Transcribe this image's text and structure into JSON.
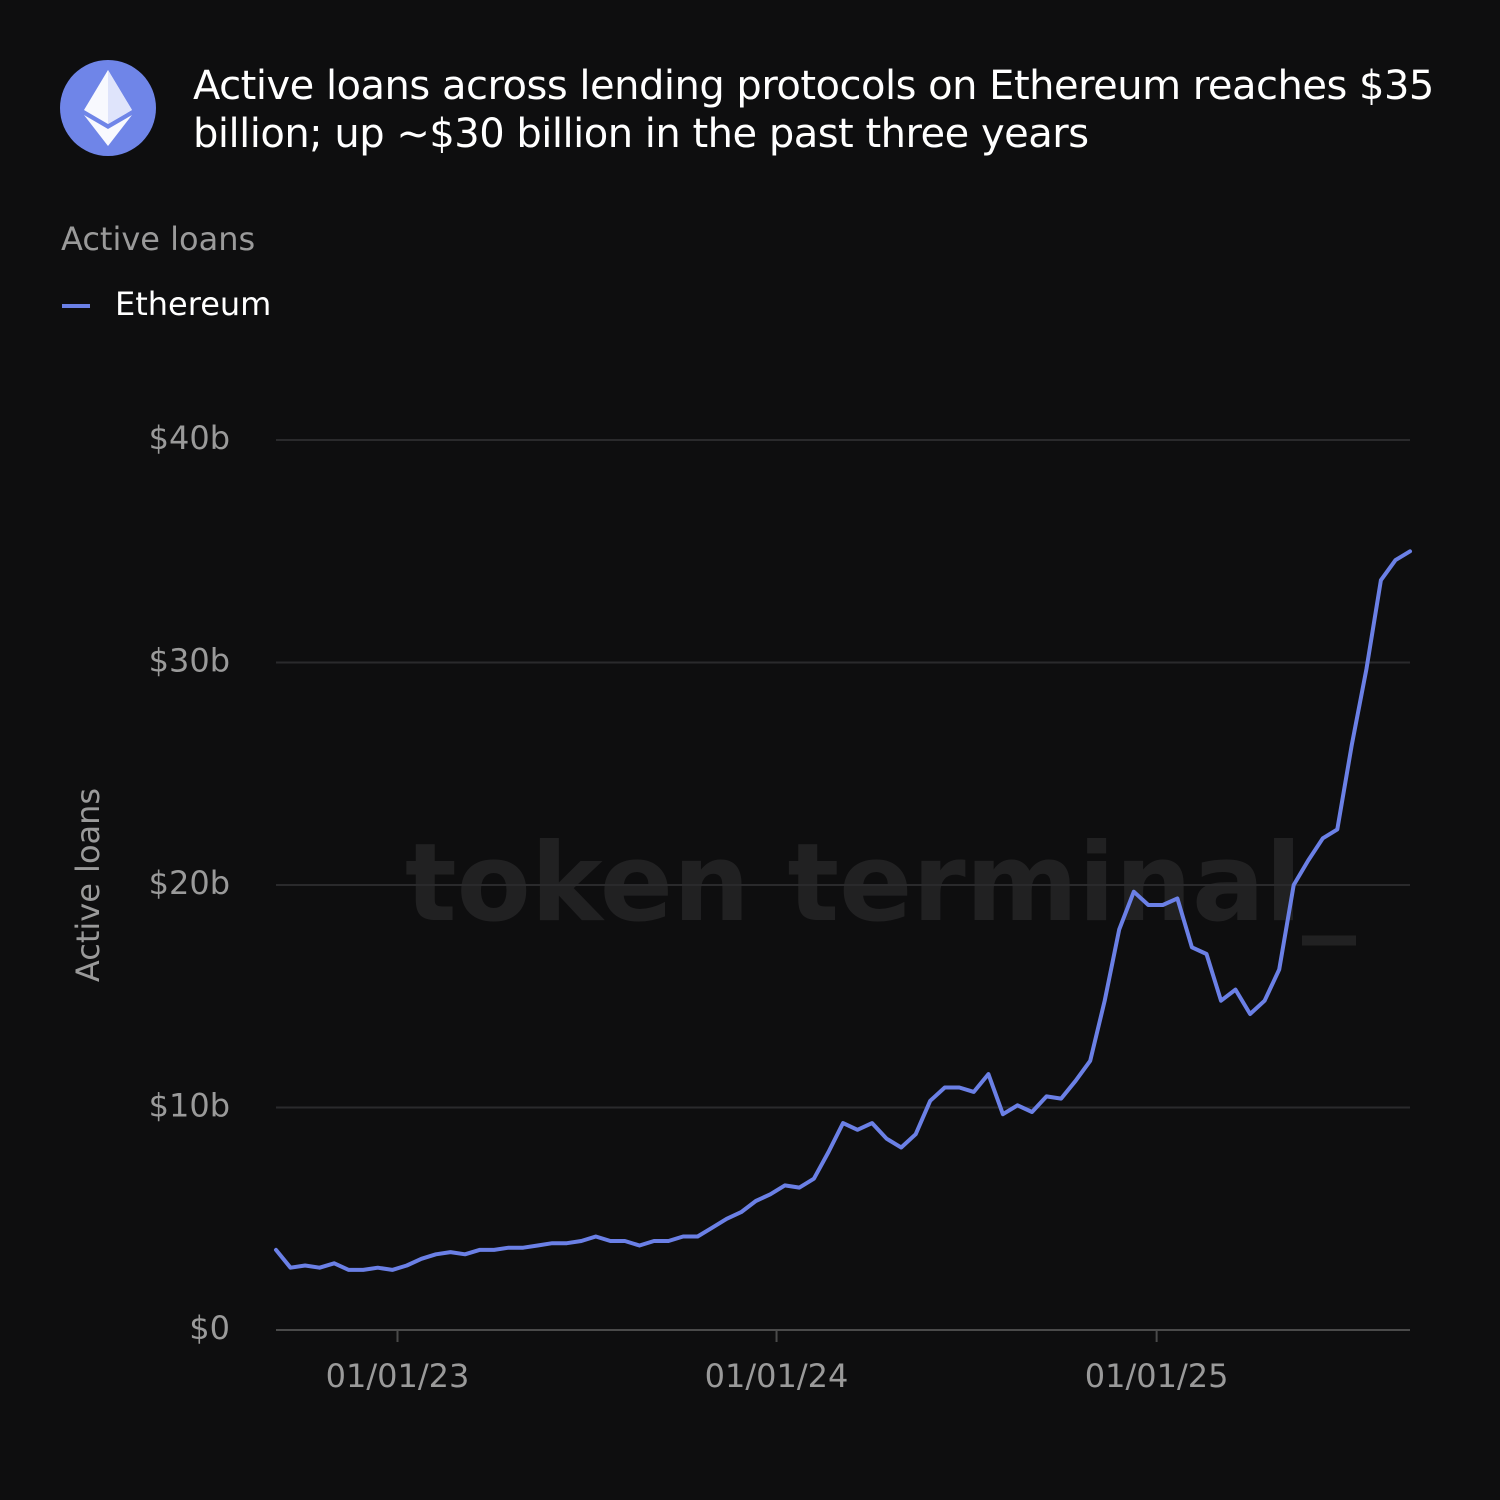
{
  "chart_data": {
    "type": "line",
    "title": "Active loans across lending protocols on Ethereum reaches $35 billion; up ~$30 billion in the past three years",
    "subtitle": "Active loans",
    "y_label": "Active loans",
    "watermark": "token terminal_",
    "x": [
      "2022-09-06",
      "2022-09-20",
      "2022-10-04",
      "2022-10-18",
      "2022-11-01",
      "2022-11-15",
      "2022-11-29",
      "2022-12-13",
      "2022-12-27",
      "2023-01-10",
      "2023-01-24",
      "2023-02-07",
      "2023-02-21",
      "2023-03-07",
      "2023-03-21",
      "2023-04-04",
      "2023-04-18",
      "2023-05-02",
      "2023-05-16",
      "2023-05-30",
      "2023-06-13",
      "2023-06-27",
      "2023-07-11",
      "2023-07-25",
      "2023-08-08",
      "2023-08-22",
      "2023-09-05",
      "2023-09-19",
      "2023-10-03",
      "2023-10-17",
      "2023-10-31",
      "2023-11-14",
      "2023-11-28",
      "2023-12-12",
      "2023-12-26",
      "2024-01-09",
      "2024-01-23",
      "2024-02-06",
      "2024-02-20",
      "2024-03-05",
      "2024-03-19",
      "2024-04-02",
      "2024-04-16",
      "2024-04-30",
      "2024-05-14",
      "2024-05-28",
      "2024-06-11",
      "2024-06-25",
      "2024-07-09",
      "2024-07-23",
      "2024-08-06",
      "2024-08-20",
      "2024-09-03",
      "2024-09-17",
      "2024-10-01",
      "2024-10-15",
      "2024-10-29",
      "2024-11-12",
      "2024-11-26",
      "2024-12-10",
      "2024-12-24",
      "2025-01-07",
      "2025-01-21",
      "2025-02-04",
      "2025-02-18",
      "2025-03-04",
      "2025-03-18",
      "2025-04-01",
      "2025-04-15",
      "2025-04-29",
      "2025-05-13",
      "2025-05-27",
      "2025-06-10",
      "2025-06-24",
      "2025-07-08",
      "2025-07-22",
      "2025-08-05",
      "2025-08-19",
      "2025-09-02"
    ],
    "series": [
      {
        "name": "Ethereum",
        "color": "#6b80e6",
        "values": [
          3.6,
          2.8,
          2.9,
          2.8,
          3.0,
          2.7,
          2.7,
          2.8,
          2.7,
          2.9,
          3.2,
          3.4,
          3.5,
          3.4,
          3.6,
          3.6,
          3.7,
          3.7,
          3.8,
          3.9,
          3.9,
          4.0,
          4.2,
          4.0,
          4.0,
          3.8,
          4.0,
          4.0,
          4.2,
          4.2,
          4.6,
          5.0,
          5.3,
          5.8,
          6.1,
          6.5,
          6.4,
          6.8,
          8.0,
          9.3,
          9.0,
          9.3,
          8.6,
          8.2,
          8.8,
          10.3,
          10.9,
          10.9,
          10.7,
          11.5,
          9.7,
          10.1,
          9.8,
          10.5,
          10.4,
          11.2,
          12.1,
          14.8,
          18.0,
          19.7,
          19.1,
          19.1,
          19.4,
          17.2,
          16.9,
          14.8,
          15.3,
          14.2,
          14.8,
          16.2,
          20.0,
          21.1,
          22.1,
          22.5,
          26.3,
          29.7,
          33.7,
          34.6,
          35.0
        ]
      }
    ],
    "xlim": [
      "2022-09-06",
      "2025-09-02"
    ],
    "xticks": [
      {
        "value": "2023-01-01",
        "label": "01/01/23"
      },
      {
        "value": "2024-01-01",
        "label": "01/01/24"
      },
      {
        "value": "2025-01-01",
        "label": "01/01/25"
      }
    ],
    "ylim": [
      0,
      40
    ],
    "yticks": [
      {
        "value": 0,
        "label": "$0"
      },
      {
        "value": 10,
        "label": "$10b"
      },
      {
        "value": 20,
        "label": "$20b"
      },
      {
        "value": 30,
        "label": "$30b"
      },
      {
        "value": 40,
        "label": "$40b"
      }
    ],
    "grid": true,
    "legend": "top-left"
  }
}
